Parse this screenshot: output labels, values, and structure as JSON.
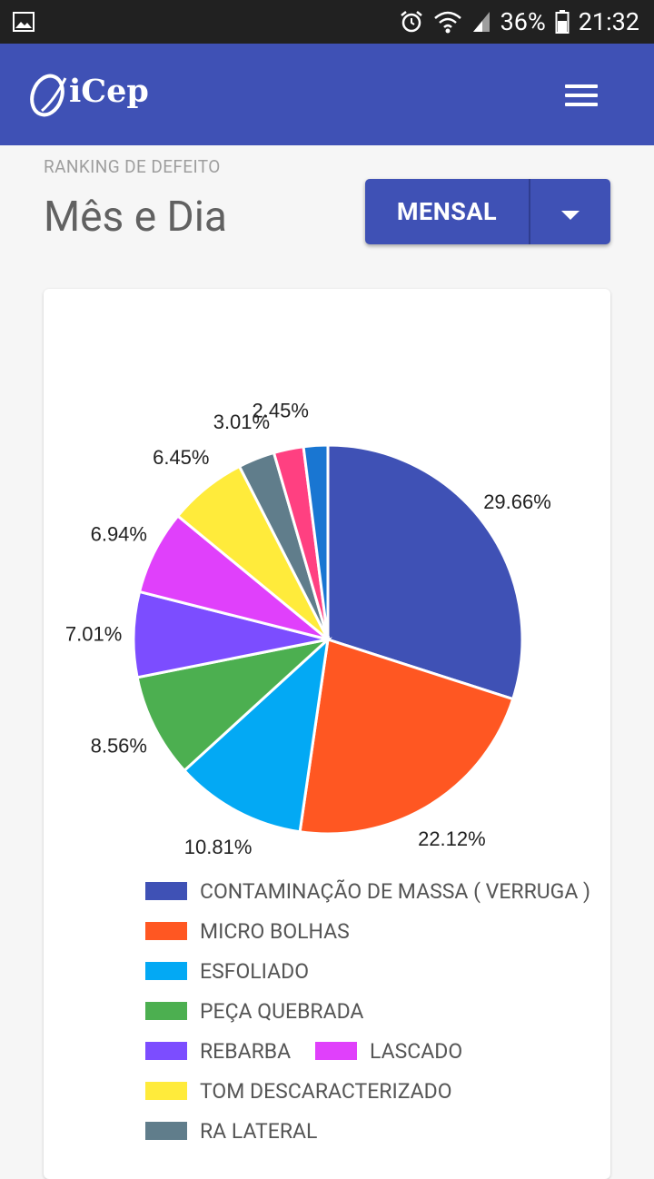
{
  "status_bar": {
    "battery": "36%",
    "time": "21:32"
  },
  "app_bar": {
    "logo_text": "iCep"
  },
  "header": {
    "subtitle": "RANKING DE DEFEITO",
    "title": "Mês e Dia"
  },
  "period_selector": {
    "selected": "MENSAL"
  },
  "colors": {
    "primary": "#3f51b5"
  },
  "chart_data": {
    "type": "pie",
    "categories": [
      "CONTAMINAÇÃO DE MASSA ( VERRUGA )",
      "MICRO BOLHAS",
      "ESFOLIADO",
      "PEÇA QUEBRADA",
      "REBARBA",
      "LASCADO",
      "TOM DESCARACTERIZADO",
      "RA LATERAL",
      "",
      ""
    ],
    "values": [
      29.66,
      22.12,
      10.81,
      8.56,
      7.01,
      6.94,
      6.45,
      3.01,
      2.45,
      1.99
    ],
    "labels": [
      "29.66%",
      "22.12%",
      "10.81%",
      "8.56%",
      "7.01%",
      "6.94%",
      "6.45%",
      "3.01%",
      "2.45%",
      ""
    ],
    "colors": [
      "#3f51b5",
      "#ff5722",
      "#03a9f4",
      "#4caf50",
      "#7c4dff",
      "#e040fb",
      "#ffeb3b",
      "#607d8b",
      "#ff4081",
      "#1976d2"
    ],
    "legend_position": "bottom"
  }
}
